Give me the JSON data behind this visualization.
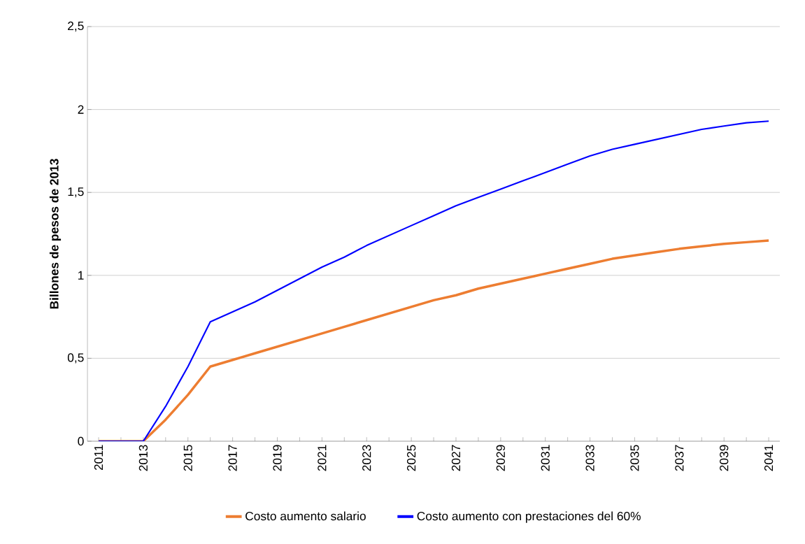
{
  "chart_data": {
    "type": "line",
    "ylabel": "Billones de pesos de 2013",
    "categories": [
      "2011",
      null,
      "2013",
      null,
      "2015",
      null,
      "2017",
      null,
      "2019",
      null,
      "2021",
      null,
      "2023",
      null,
      "2025",
      null,
      "2027",
      null,
      "2029",
      null,
      "2031",
      null,
      "2033",
      null,
      "2035",
      null,
      "2037",
      null,
      "2039",
      null,
      "2041"
    ],
    "series": [
      {
        "name": "Costo aumento salario",
        "color": "#ed7d31",
        "values": [
          0,
          0,
          0,
          0.13,
          0.28,
          0.45,
          0.49,
          0.53,
          0.57,
          0.61,
          0.65,
          0.69,
          0.73,
          0.77,
          0.81,
          0.85,
          0.88,
          0.92,
          0.95,
          0.98,
          1.01,
          1.04,
          1.07,
          1.1,
          1.12,
          1.14,
          1.16,
          1.175,
          1.19,
          1.2,
          1.21
        ]
      },
      {
        "name": "Costo aumento con prestaciones del 60%",
        "color": "#0000ff",
        "values": [
          0,
          0,
          0,
          0.21,
          0.45,
          0.72,
          0.78,
          0.84,
          0.91,
          0.98,
          1.05,
          1.11,
          1.18,
          1.24,
          1.3,
          1.36,
          1.42,
          1.47,
          1.52,
          1.57,
          1.62,
          1.67,
          1.72,
          1.76,
          1.79,
          1.82,
          1.85,
          1.88,
          1.9,
          1.92,
          1.93
        ]
      }
    ],
    "ylim": [
      0,
      2.5
    ],
    "yticks": [
      {
        "value": 0,
        "label": "0"
      },
      {
        "value": 0.5,
        "label": "0,5"
      },
      {
        "value": 1,
        "label": "1"
      },
      {
        "value": 1.5,
        "label": "1,5"
      },
      {
        "value": 2,
        "label": "2"
      },
      {
        "value": 2.5,
        "label": "2,5"
      }
    ],
    "grid": "y",
    "legend": "bottom"
  }
}
